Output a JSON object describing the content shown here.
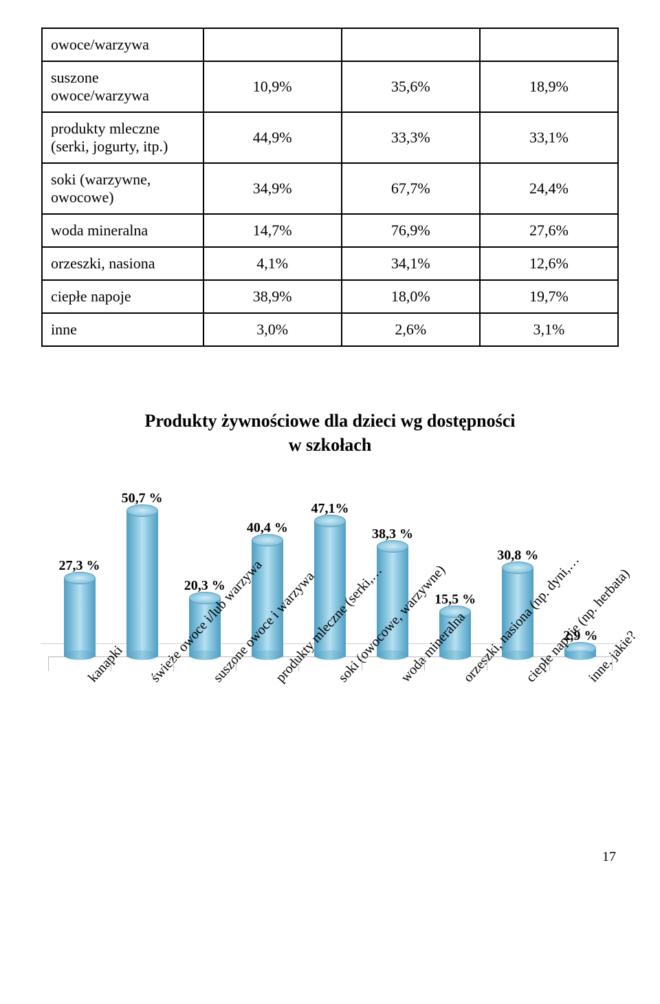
{
  "table": {
    "rows": [
      {
        "label": "owoce/warzywa",
        "c1": "",
        "c2": "",
        "c3": ""
      },
      {
        "label": "suszone\nowoce/warzywa",
        "c1": "10,9%",
        "c2": "35,6%",
        "c3": "18,9%"
      },
      {
        "label": "produkty mleczne\n(serki, jogurty, itp.)",
        "c1": "44,9%",
        "c2": "33,3%",
        "c3": "33,1%"
      },
      {
        "label": "soki (warzywne,\nowocowe)",
        "c1": "34,9%",
        "c2": "67,7%",
        "c3": "24,4%"
      },
      {
        "label": "woda mineralna",
        "c1": "14,7%",
        "c2": "76,9%",
        "c3": "27,6%"
      },
      {
        "label": "orzeszki, nasiona",
        "c1": "4,1%",
        "c2": "34,1%",
        "c3": "12,6%"
      },
      {
        "label": "ciepłe napoje",
        "c1": "38,9%",
        "c2": "18,0%",
        "c3": "19,7%"
      },
      {
        "label": "inne",
        "c1": "3,0%",
        "c2": "2,6%",
        "c3": "3,1%"
      }
    ]
  },
  "chart": {
    "title_line1": "Produkty żywnościowe dla dzieci wg dostępności",
    "title_line2": "w szkołach",
    "type": "bar-3d-cylinder",
    "ylim": [
      0,
      55
    ],
    "bar_color_gradient": [
      "#4f9ec2",
      "#93cce4",
      "#b6e0f0",
      "#93cce4",
      "#4f9ec2"
    ],
    "bar_top_color": "#cdeaf5",
    "grid_color": "#b8b8b8",
    "background_color": "#ffffff",
    "label_fontsize": 20,
    "title_fontsize": 26,
    "categories": [
      "kanapki",
      "świeże owoce i/lub warzywa",
      "suszone owoce i warzywa",
      "produkty mleczne (serki,…",
      "soki (owocowe, warzywne)",
      "woda mineralna",
      "orzeszki, nasiona (np. dyni,…",
      "ciepłe napoje (np. herbata)",
      "inne, jakie?"
    ],
    "values": [
      27.3,
      50.7,
      20.3,
      40.4,
      47.1,
      38.3,
      15.5,
      30.8,
      2.9
    ],
    "value_labels": [
      "27,3 %",
      "50,7 %",
      "20,3 %",
      "40,4 %",
      "47,1%",
      "38,3 %",
      "15,5 %",
      "30,8 %",
      "2,9 %"
    ]
  },
  "page_number": "17"
}
